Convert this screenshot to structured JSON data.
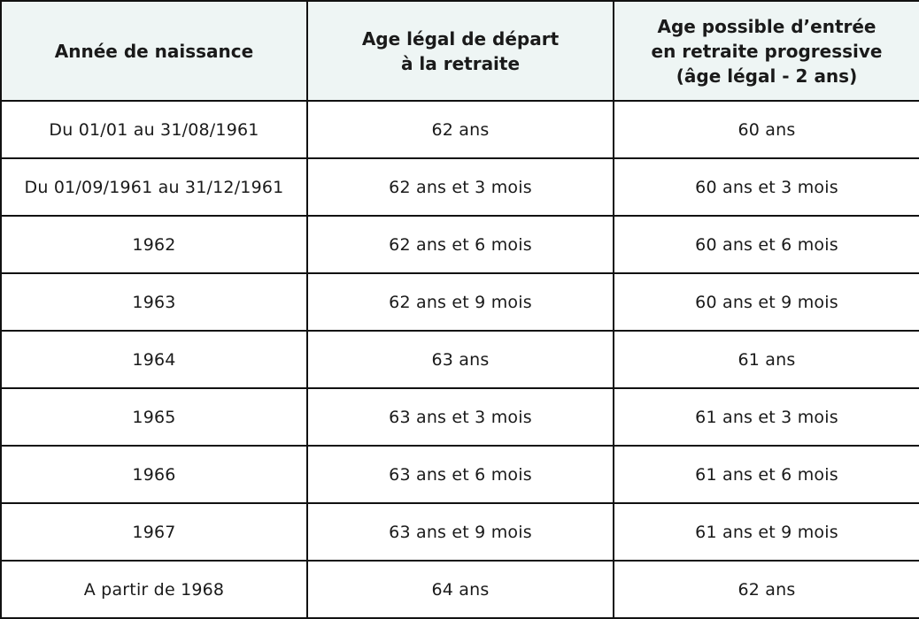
{
  "table": {
    "headers": [
      "Année de naissance",
      "Age légal de départ\nà la retraite",
      "Age possible d’entrée\nen retraite progressive\n(âge légal - 2 ans)"
    ],
    "rows": [
      [
        "Du 01/01 au 31/08/1961",
        "62 ans",
        "60 ans"
      ],
      [
        "Du 01/09/1961 au 31/12/1961",
        "62 ans et 3 mois",
        "60 ans et 3 mois"
      ],
      [
        "1962",
        "62 ans et 6 mois",
        "60 ans et 6 mois"
      ],
      [
        "1963",
        "62 ans et 9 mois",
        "60 ans et 9 mois"
      ],
      [
        "1964",
        "63 ans",
        "61 ans"
      ],
      [
        "1965",
        "63 ans et 3 mois",
        "61 ans et 3 mois"
      ],
      [
        "1966",
        "63 ans et 6 mois",
        "61 ans et 6 mois"
      ],
      [
        "1967",
        "63 ans et 9 mois",
        "61 ans et 9 mois"
      ],
      [
        "A partir de 1968",
        "64 ans",
        "62 ans"
      ]
    ]
  },
  "colors": {
    "header_background": "#eef5f4",
    "border": "#111111",
    "text": "#1a1a1a"
  }
}
